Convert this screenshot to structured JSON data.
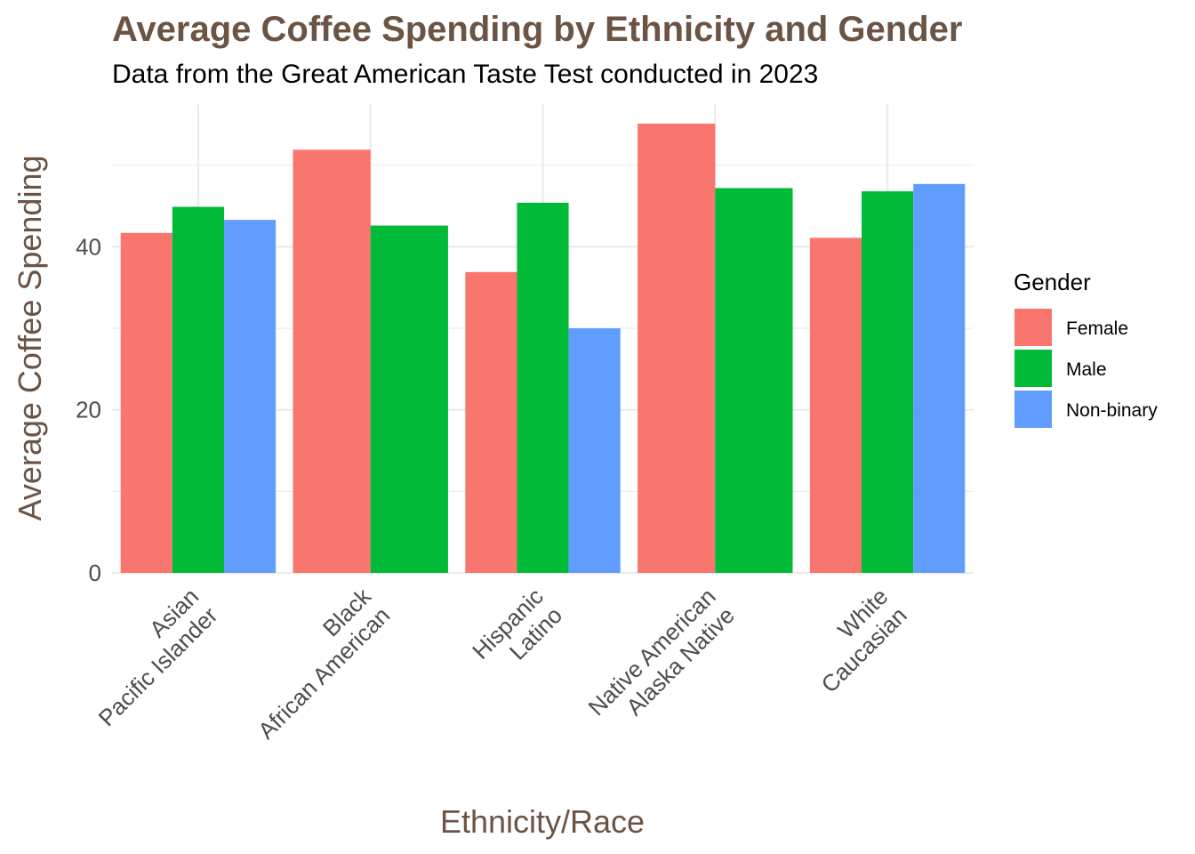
{
  "title": "Average Coffee Spending by Ethnicity and Gender",
  "subtitle": "Data from the Great American Taste Test conducted in 2023",
  "colors": {
    "title": "#6b5444",
    "axis_title": "#6b5444",
    "grid": "#ebebeb",
    "tick_text": "#4d4d4d"
  },
  "chart_data": {
    "type": "bar",
    "xlabel": "Ethnicity/Race",
    "ylabel": "Average Coffee Spending",
    "ylim": [
      0,
      57.5
    ],
    "y_ticks": [
      0,
      20,
      40
    ],
    "grid": true,
    "legend": {
      "title": "Gender",
      "position": "right"
    },
    "categories": [
      [
        "Asian",
        "Pacific Islander"
      ],
      [
        "Black",
        "African American"
      ],
      [
        "Hispanic",
        "Latino"
      ],
      [
        "Native American",
        "Alaska Native"
      ],
      [
        "White",
        "Caucasian"
      ]
    ],
    "series": [
      {
        "name": "Female",
        "color": "#f8766d",
        "values": [
          41.7,
          51.9,
          36.9,
          55.1,
          41.1
        ]
      },
      {
        "name": "Male",
        "color": "#00ba38",
        "values": [
          44.9,
          42.6,
          45.4,
          47.2,
          46.8
        ]
      },
      {
        "name": "Non-binary",
        "color": "#619cff",
        "values": [
          43.3,
          null,
          30.0,
          null,
          47.7
        ]
      }
    ]
  }
}
